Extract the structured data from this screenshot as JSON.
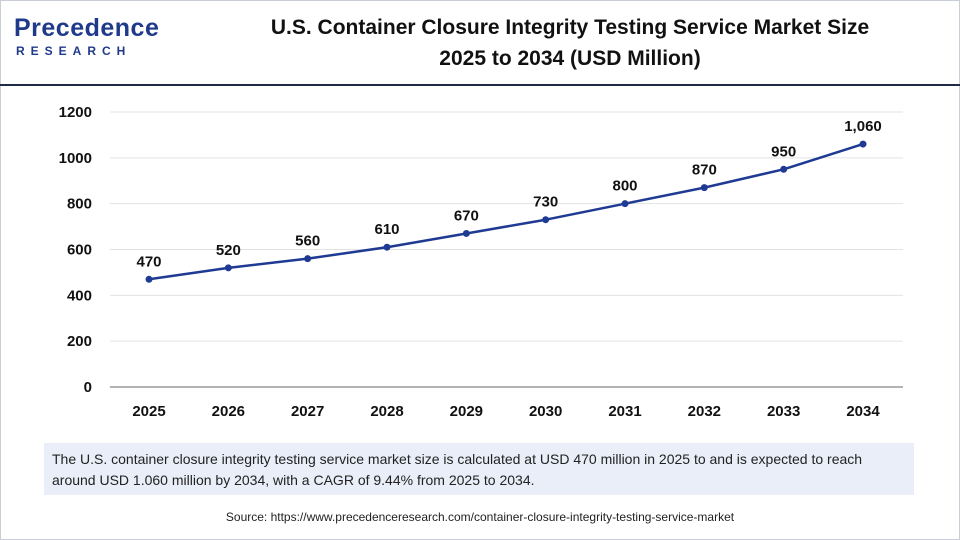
{
  "brand": {
    "name": "Precedence",
    "sub": "RESEARCH"
  },
  "title_line1": "U.S. Container Closure Integrity Testing Service Market Size",
  "title_line2": "2025 to 2034 (USD Million)",
  "note": "The U.S. container closure integrity testing service market size is calculated at USD 470 million in 2025 to and is expected to reach around USD 1.060 million by 2034, with a CAGR of 9.44% from 2025 to 2034.",
  "source": "Source: https://www.precedenceresearch.com/container-closure-integrity-testing-service-market",
  "colors": {
    "line": "#1f3a93",
    "grid": "#e3e3e3",
    "axis": "#9a9a9a"
  },
  "chart_data": {
    "type": "line",
    "title": "U.S. Container Closure Integrity Testing Service Market Size 2025 to 2034 (USD Million)",
    "xlabel": "",
    "ylabel": "",
    "categories": [
      "2025",
      "2026",
      "2027",
      "2028",
      "2029",
      "2030",
      "2031",
      "2032",
      "2033",
      "2034"
    ],
    "values": [
      470,
      520,
      560,
      610,
      670,
      730,
      800,
      870,
      950,
      1060
    ],
    "data_labels": [
      "470",
      "520",
      "560",
      "610",
      "670",
      "730",
      "800",
      "870",
      "950",
      "1,060"
    ],
    "yticks": [
      0,
      200,
      400,
      600,
      800,
      1000,
      1200
    ],
    "ylim": [
      0,
      1200
    ],
    "grid": true,
    "legend": "none"
  }
}
